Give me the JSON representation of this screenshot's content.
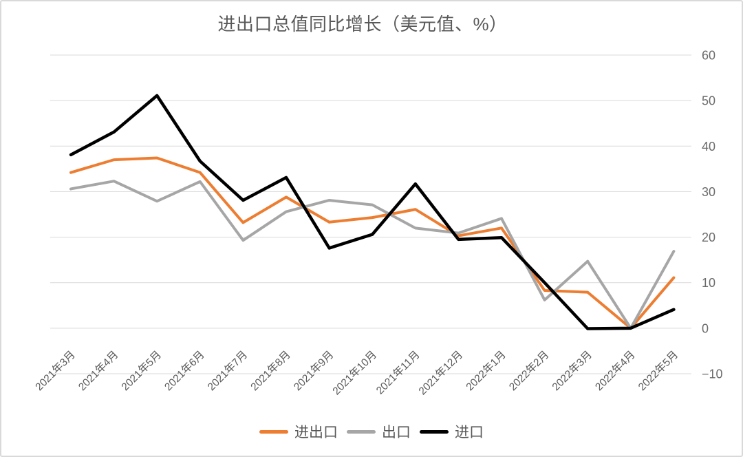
{
  "page": {
    "title": "进出口总值同比增长（美元值、%）"
  },
  "chart_data": {
    "type": "line",
    "title": "进出口总值同比增长（美元值、%）",
    "categories": [
      "2021年3月",
      "2021年4月",
      "2021年5月",
      "2021年6月",
      "2021年7月",
      "2021年8月",
      "2021年9月",
      "2021年10月",
      "2021年11月",
      "2021年12月",
      "2022年1月",
      "2022年2月",
      "2022年3月",
      "2022年4月",
      "2022年5月"
    ],
    "series": [
      {
        "name": "进出口",
        "color": "#ED7D31",
        "stroke_width": 4,
        "values": [
          34.2,
          37.0,
          37.4,
          34.2,
          23.2,
          28.8,
          23.3,
          24.3,
          26.1,
          20.3,
          22.0,
          8.3,
          7.9,
          0.0,
          11.1
        ]
      },
      {
        "name": "出口",
        "color": "#A6A6A6",
        "stroke_width": 4,
        "values": [
          30.6,
          32.3,
          27.9,
          32.2,
          19.3,
          25.6,
          28.1,
          27.1,
          22.0,
          20.9,
          24.1,
          6.2,
          14.7,
          0.0,
          16.9
        ]
      },
      {
        "name": "进口",
        "color": "#000000",
        "stroke_width": 4.5,
        "values": [
          38.1,
          43.1,
          51.1,
          36.7,
          28.1,
          33.1,
          17.6,
          20.6,
          31.7,
          19.5,
          19.9,
          10.0,
          -0.1,
          0.0,
          4.1
        ]
      }
    ],
    "ylim": [
      -10,
      60
    ],
    "ytick_step": 10,
    "ytick_labels": [
      "60",
      "50",
      "40",
      "30",
      "20",
      "10",
      "0",
      "−10"
    ],
    "xlabel": "",
    "ylabel": "",
    "grid": true,
    "y_axis_side": "right",
    "x_label_rotation": -45,
    "legend_position": "bottom"
  },
  "colors": {
    "background": "#FFFFFF",
    "grid": "#D9D9D9",
    "frame": "#D9D9D9",
    "title_text": "#595959",
    "x_tick_text": "#595959",
    "y_tick_text": "#6B6B6B"
  }
}
